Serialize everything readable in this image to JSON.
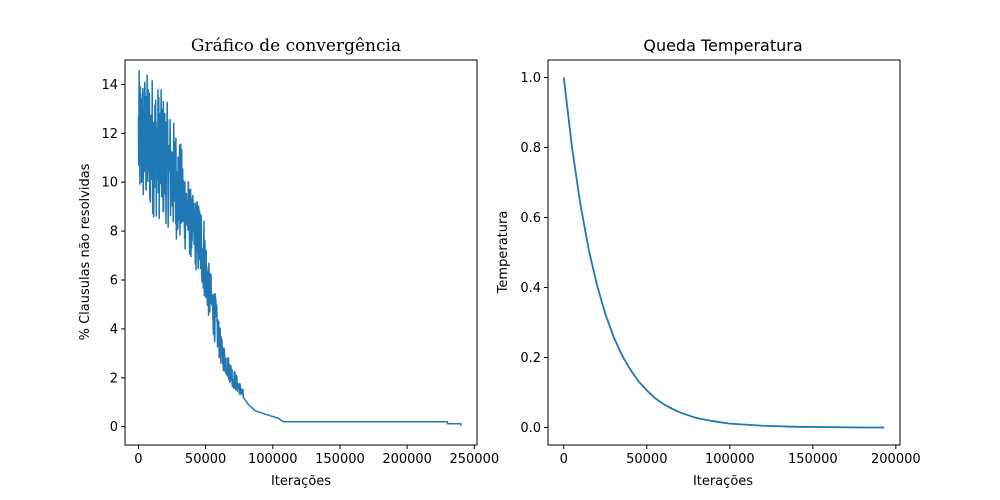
{
  "chart_data": [
    {
      "type": "line",
      "title": "Gráfico de convergência",
      "xlabel": "Iterações",
      "ylabel": "% Clausulas não resolvidas",
      "xlim": [
        -10000,
        252000
      ],
      "ylim": [
        -0.75,
        15.0
      ],
      "xticks": [
        0,
        50000,
        100000,
        150000,
        200000,
        250000
      ],
      "xtick_labels": [
        "0",
        "50000",
        "100000",
        "150000",
        "200000",
        "250000"
      ],
      "yticks": [
        0,
        2,
        4,
        6,
        8,
        10,
        12,
        14
      ],
      "ytick_labels": [
        "0",
        "2",
        "4",
        "6",
        "8",
        "10",
        "12",
        "14"
      ],
      "series": [
        {
          "color": "#1f77b4",
          "noisy_band": [
            {
              "x": 0,
              "lo": 9.0,
              "hi": 14.6
            },
            {
              "x": 10000,
              "lo": 8.6,
              "hi": 14.5
            },
            {
              "x": 20000,
              "lo": 8.3,
              "hi": 13.5
            },
            {
              "x": 30000,
              "lo": 7.5,
              "hi": 12.0
            },
            {
              "x": 40000,
              "lo": 6.8,
              "hi": 9.5
            },
            {
              "x": 48000,
              "lo": 5.5,
              "hi": 9.2
            },
            {
              "x": 52000,
              "lo": 4.5,
              "hi": 6.8
            },
            {
              "x": 57000,
              "lo": 3.4,
              "hi": 5.5
            },
            {
              "x": 62000,
              "lo": 2.4,
              "hi": 3.6
            },
            {
              "x": 70000,
              "lo": 1.6,
              "hi": 2.5
            },
            {
              "x": 78000,
              "lo": 1.15,
              "hi": 1.5
            }
          ],
          "tail_points": [
            [
              78000,
              1.2
            ],
            [
              82000,
              0.9
            ],
            [
              87000,
              0.65
            ],
            [
              95000,
              0.5
            ],
            [
              104000,
              0.35
            ],
            [
              108000,
              0.2
            ],
            [
              230000,
              0.2
            ],
            [
              230000,
              0.12
            ],
            [
              240000,
              0.12
            ],
            [
              240000,
              0.02
            ]
          ]
        }
      ]
    },
    {
      "type": "line",
      "title": "Queda Temperatura",
      "xlabel": "Iterações",
      "ylabel": "Temperatura",
      "xlim": [
        -9500,
        202500
      ],
      "ylim": [
        -0.05,
        1.05
      ],
      "xticks": [
        0,
        50000,
        100000,
        150000,
        200000
      ],
      "xtick_labels": [
        "0",
        "50000",
        "100000",
        "150000",
        "200000"
      ],
      "yticks": [
        0.0,
        0.2,
        0.4,
        0.6,
        0.8,
        1.0
      ],
      "ytick_labels": [
        "0.0",
        "0.2",
        "0.4",
        "0.6",
        "0.8",
        "1.0"
      ],
      "series": [
        {
          "color": "#1f77b4",
          "x": [
            0,
            5000,
            10000,
            15000,
            20000,
            25000,
            30000,
            35000,
            40000,
            45000,
            50000,
            55000,
            60000,
            65000,
            70000,
            80000,
            90000,
            100000,
            120000,
            140000,
            160000,
            180000,
            193000
          ],
          "y": [
            1.0,
            0.799,
            0.638,
            0.509,
            0.407,
            0.325,
            0.259,
            0.207,
            0.166,
            0.132,
            0.106,
            0.084,
            0.067,
            0.054,
            0.043,
            0.027,
            0.018,
            0.011,
            0.005,
            0.002,
            0.001,
            0.0,
            0.0
          ]
        }
      ]
    }
  ]
}
